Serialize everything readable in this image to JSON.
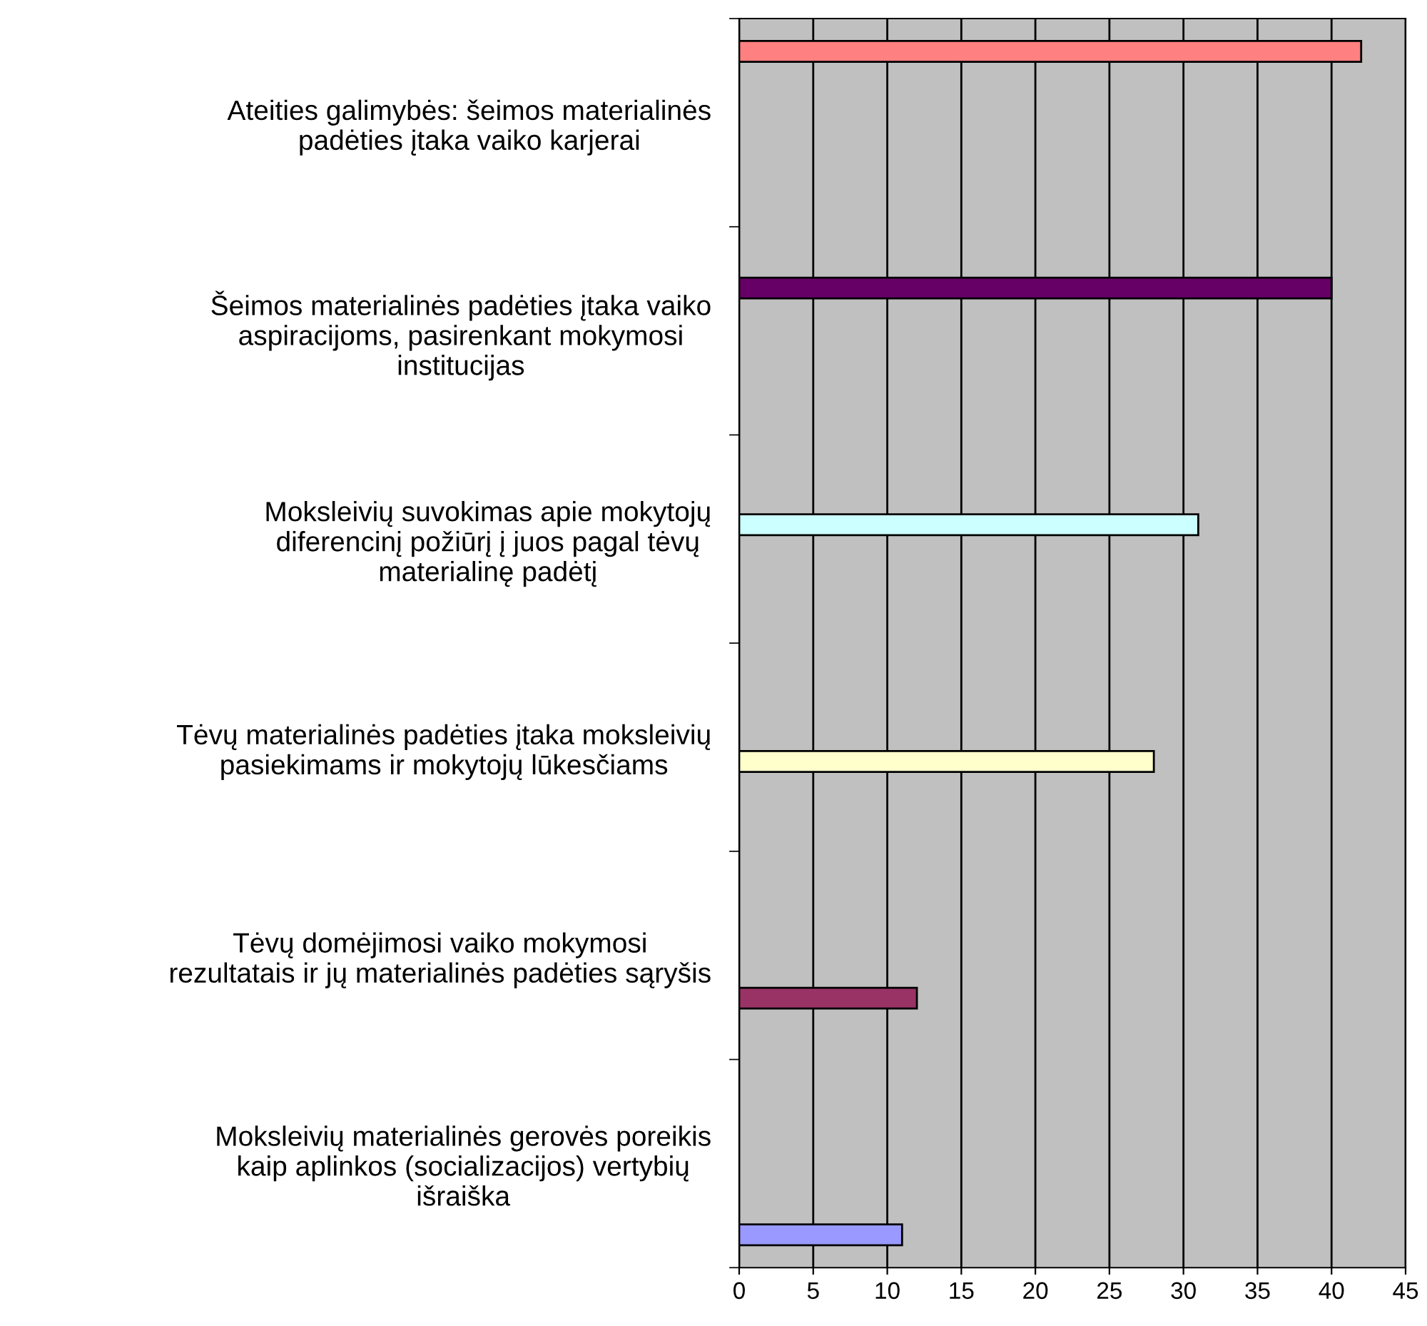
{
  "chart_data": {
    "type": "bar",
    "orientation": "horizontal",
    "categories": [
      "Ateities galimybės: šeimos materialinės\npadėties įtaka vaiko karjerai",
      "Šeimos materialinės padėties įtaka vaiko\naspiracijoms, pasirenkant mokymosi\ninstitucijas",
      "Moksleivių suvokimas apie mokytojų\ndiferencinį požiūrį į juos pagal tėvų\nmaterialinę padėtį",
      "Tėvų materialinės padėties įtaka moksleivių\npasiekimams ir mokytojų lūkesčiams",
      "Tėvų domėjimosi vaiko mokymosi\nrezultatais ir jų materialinės padėties sąryšis",
      "Moksleivių materialinės gerovės poreikis\nkaip aplinkos (socializacijos) vertybių\nišraiška"
    ],
    "series": [
      {
        "color": "#ff8080",
        "values": [
          42,
          null,
          null,
          null,
          null,
          null
        ]
      },
      {
        "color": "#660066",
        "values": [
          null,
          40,
          null,
          null,
          null,
          null
        ]
      },
      {
        "color": "#ccffff",
        "values": [
          null,
          null,
          31,
          null,
          null,
          null
        ]
      },
      {
        "color": "#ffffcc",
        "values": [
          null,
          null,
          null,
          28,
          null,
          null
        ]
      },
      {
        "color": "#993366",
        "values": [
          null,
          null,
          null,
          null,
          12,
          null
        ]
      },
      {
        "color": "#9999ff",
        "values": [
          null,
          null,
          null,
          null,
          null,
          11
        ]
      }
    ],
    "xlim": [
      0,
      45
    ],
    "xticks": [
      0,
      5,
      10,
      15,
      20,
      25,
      30,
      35,
      40,
      45
    ],
    "grid": "x",
    "legend": false
  }
}
